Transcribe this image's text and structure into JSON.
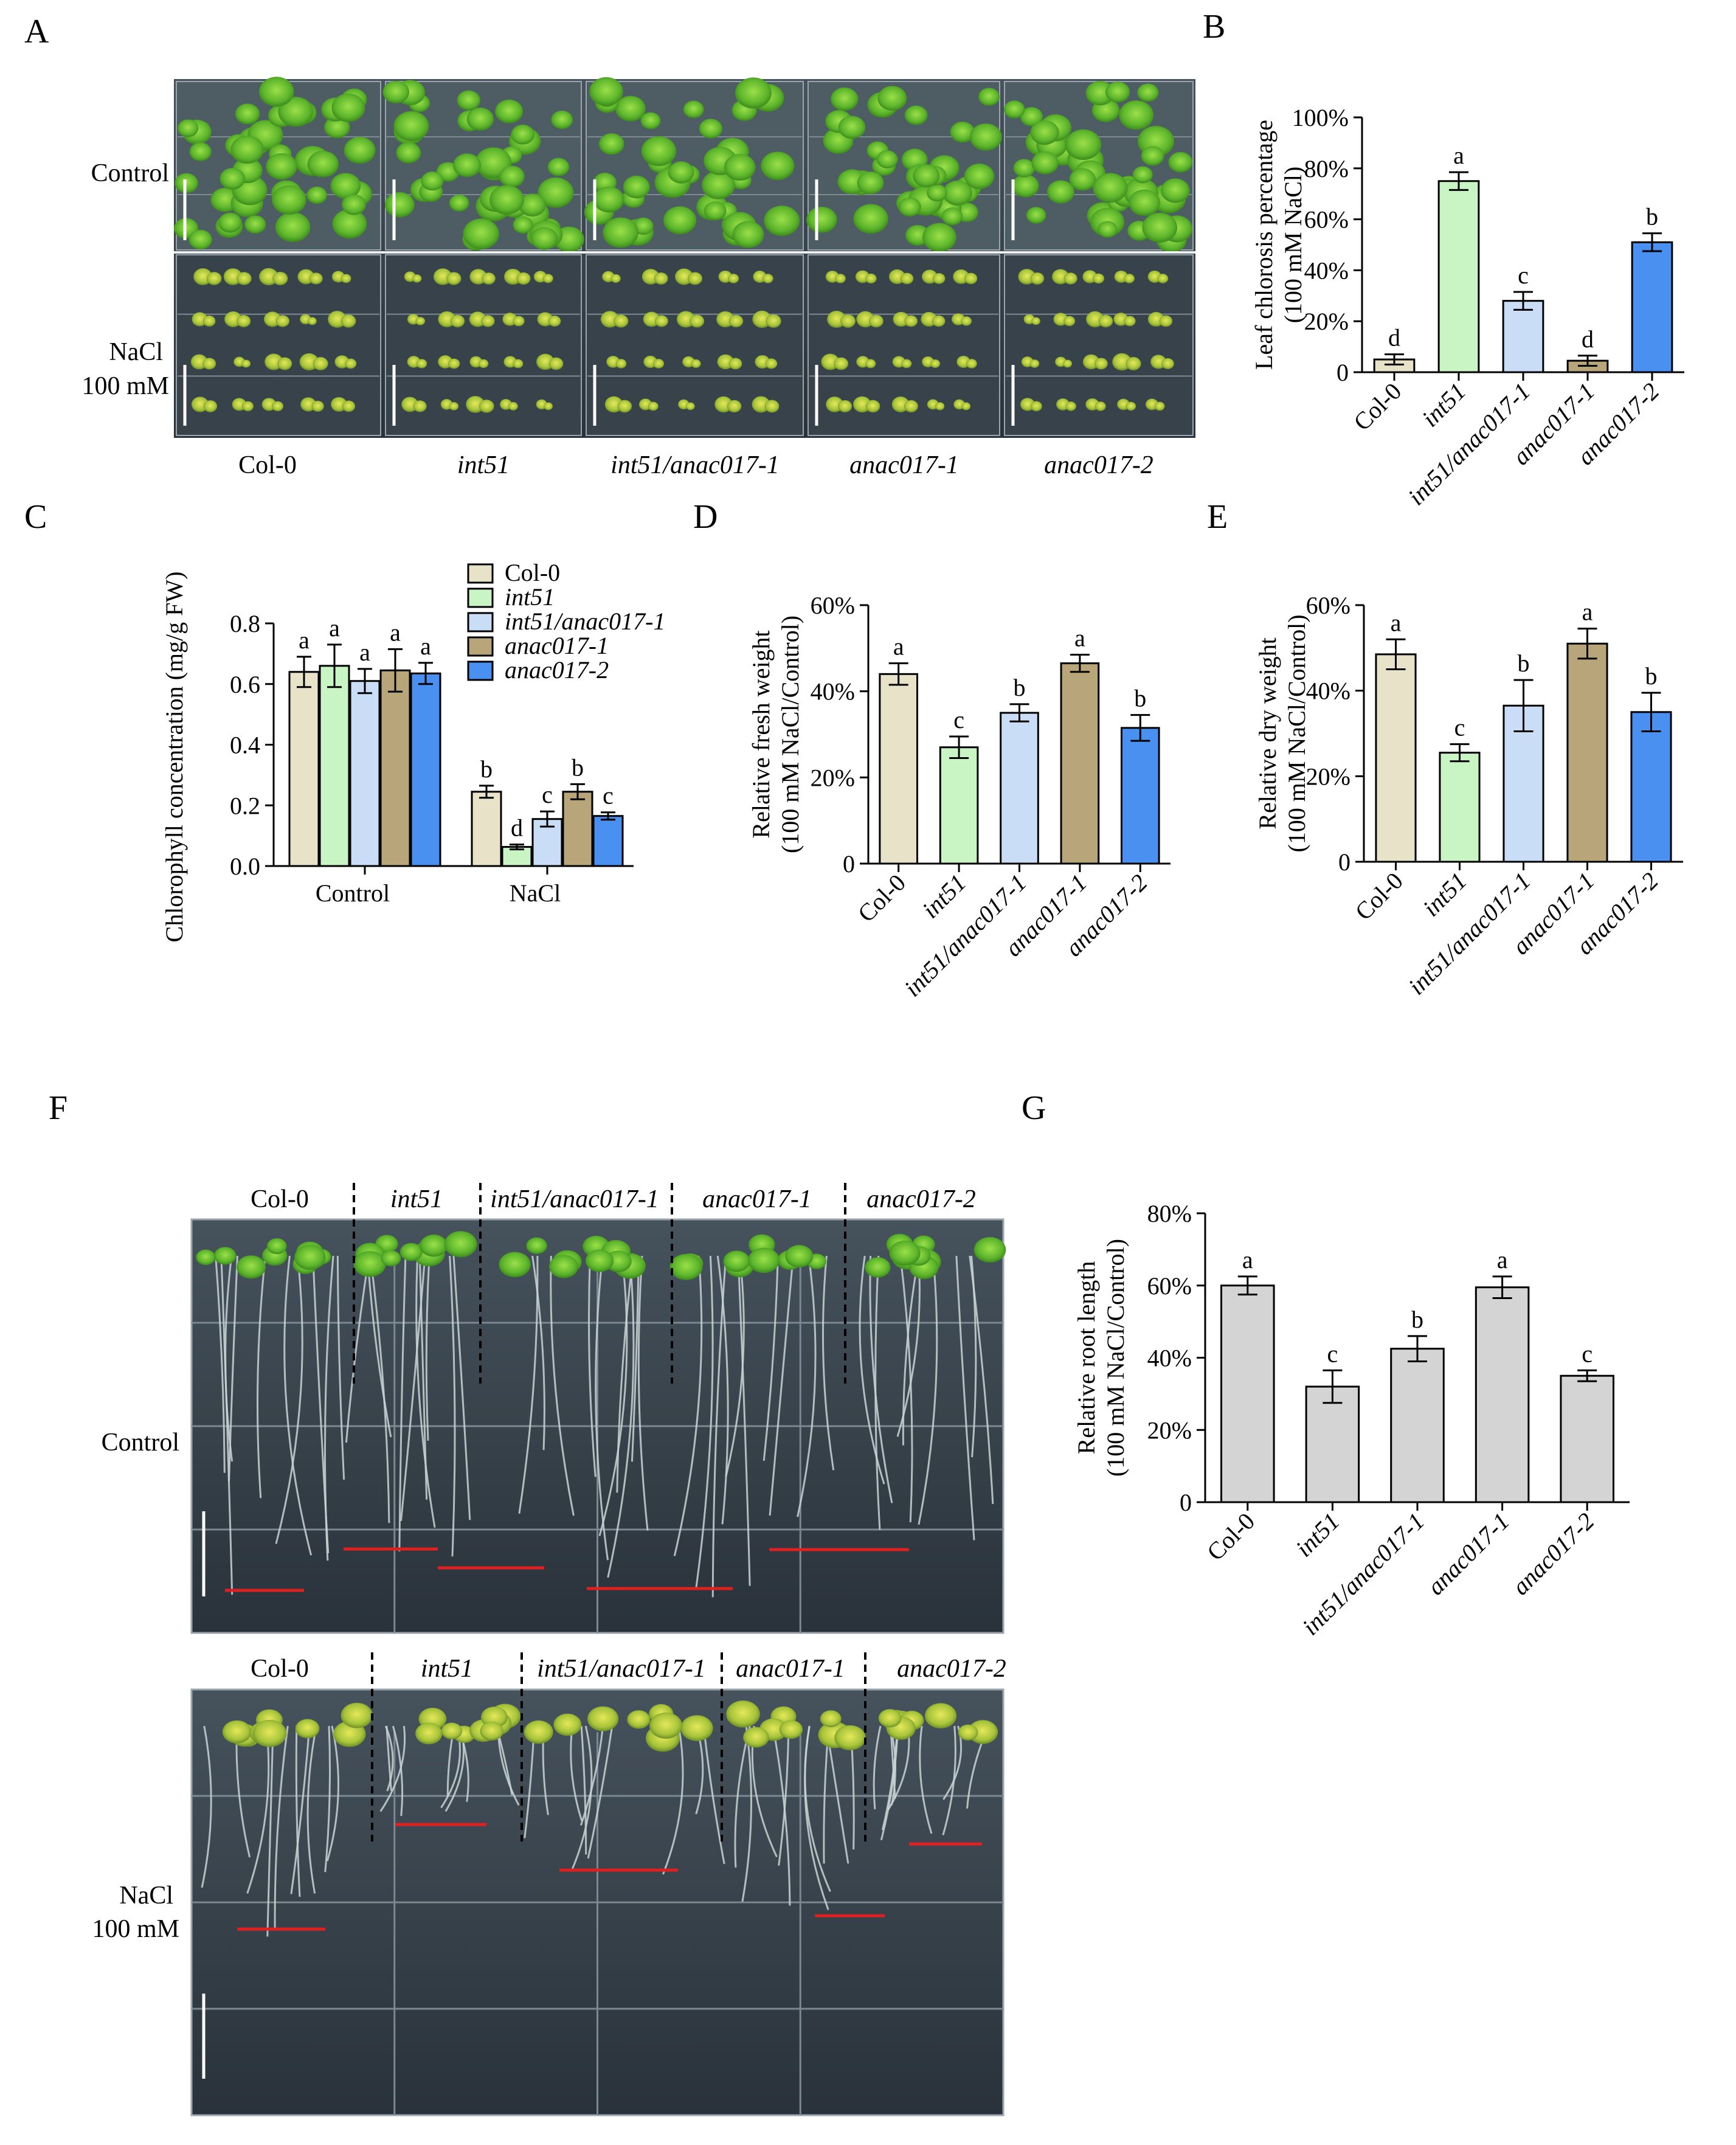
{
  "panels": {
    "A": "A",
    "B": "B",
    "C": "C",
    "D": "D",
    "E": "E",
    "F": "F",
    "G": "G"
  },
  "genotypes": [
    "Col-0",
    "int51",
    "int51/anac017-1",
    "anac017-1",
    "anac017-2"
  ],
  "italic": [
    false,
    true,
    true,
    true,
    true
  ],
  "colors": {
    "col0": "#E8E2C9",
    "int51": "#C9F5C4",
    "int51anac": "#C9DDF7",
    "anac1": "#B8A67A",
    "anac2": "#4A90F0",
    "grey": "#D4D4D4"
  },
  "panelA": {
    "row_labels": [
      "Control",
      "NaCl",
      "100 mM"
    ]
  },
  "panelF": {
    "row_labels": [
      "Control",
      "NaCl",
      "100 mM"
    ]
  },
  "chart_data": [
    {
      "id": "B",
      "type": "bar",
      "categories": [
        "Col-0",
        "int51",
        "int51/anac017-1",
        "anac017-1",
        "anac017-2"
      ],
      "values": [
        5,
        75,
        28,
        4.5,
        51
      ],
      "errors": [
        2,
        3.5,
        3.5,
        2,
        3.5
      ],
      "letters": [
        "d",
        "a",
        "c",
        "d",
        "b"
      ],
      "ylabel": [
        "Leaf chlorosis percentage",
        "(100 mM NaCl)"
      ],
      "ylim": [
        0,
        100
      ],
      "ticks": [
        "0",
        "20%",
        "40%",
        "60%",
        "80%",
        "100%"
      ]
    },
    {
      "id": "C",
      "type": "bar",
      "groups": [
        "Control",
        "NaCl"
      ],
      "series": [
        {
          "name": "Col-0",
          "values": [
            0.64,
            0.245
          ],
          "errors": [
            0.05,
            0.02
          ]
        },
        {
          "name": "int51",
          "values": [
            0.66,
            0.063
          ],
          "errors": [
            0.07,
            0.008
          ]
        },
        {
          "name": "int51/anac017-1",
          "values": [
            0.61,
            0.155
          ],
          "errors": [
            0.04,
            0.025
          ]
        },
        {
          "name": "anac017-1",
          "values": [
            0.645,
            0.245
          ],
          "errors": [
            0.07,
            0.025
          ]
        },
        {
          "name": "anac017-2",
          "values": [
            0.635,
            0.165
          ],
          "errors": [
            0.035,
            0.012
          ]
        }
      ],
      "letters": [
        [
          "a",
          "a",
          "a",
          "a",
          "a"
        ],
        [
          "b",
          "d",
          "c",
          "b",
          "c"
        ]
      ],
      "ylabel": "Chlorophyll concentration (mg/g FW)",
      "ylim": [
        0,
        0.8
      ],
      "ticks": [
        "0.0",
        "0.2",
        "0.4",
        "0.6",
        "0.8"
      ]
    },
    {
      "id": "D",
      "type": "bar",
      "categories": [
        "Col-0",
        "int51",
        "int51/anac017-1",
        "anac017-1",
        "anac017-2"
      ],
      "values": [
        44,
        27,
        35,
        46.5,
        31.5
      ],
      "errors": [
        2.5,
        2.5,
        2,
        2,
        3
      ],
      "letters": [
        "a",
        "c",
        "b",
        "a",
        "b"
      ],
      "ylabel": [
        "Relative fresh weight",
        "(100 mM NaCl/Control)"
      ],
      "ylim": [
        0,
        60
      ],
      "ticks": [
        "0",
        "20%",
        "40%",
        "60%"
      ]
    },
    {
      "id": "E",
      "type": "bar",
      "categories": [
        "Col-0",
        "int51",
        "int51/anac017-1",
        "anac017-1",
        "anac017-2"
      ],
      "values": [
        48.5,
        25.5,
        36.5,
        51,
        35
      ],
      "errors": [
        3.5,
        2,
        6,
        3.5,
        4.5
      ],
      "letters": [
        "a",
        "c",
        "b",
        "a",
        "b"
      ],
      "ylabel": [
        "Relative dry weight",
        "(100 mM NaCl/Control)"
      ],
      "ylim": [
        0,
        60
      ],
      "ticks": [
        "0",
        "20%",
        "40%",
        "60%"
      ]
    },
    {
      "id": "G",
      "type": "bar",
      "categories": [
        "Col-0",
        "int51",
        "int51/anac017-1",
        "anac017-1",
        "anac017-2"
      ],
      "values": [
        60,
        32,
        42.5,
        59.5,
        35
      ],
      "errors": [
        2.5,
        4.5,
        3.5,
        3,
        1.5
      ],
      "letters": [
        "a",
        "c",
        "b",
        "a",
        "c"
      ],
      "ylabel": [
        "Relative root length",
        "(100 mM NaCl/Control)"
      ],
      "ylim": [
        0,
        80
      ],
      "ticks": [
        "0",
        "20%",
        "40%",
        "60%",
        "80%"
      ]
    }
  ]
}
